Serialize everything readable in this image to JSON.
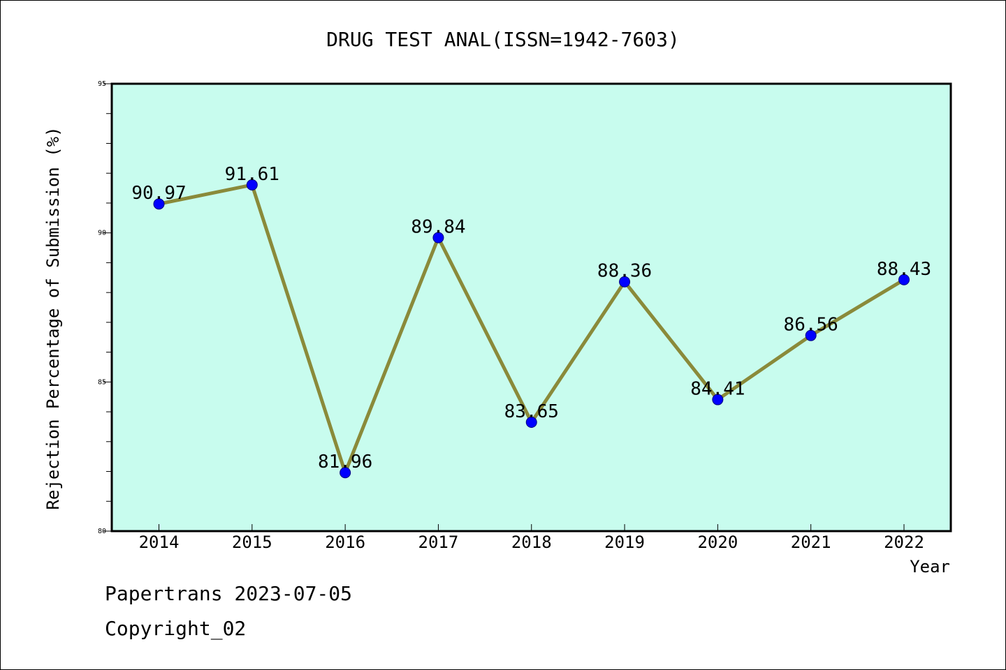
{
  "chart_data": {
    "type": "line",
    "title": "DRUG TEST ANAL(ISSN=1942-7603)",
    "xlabel": "Year",
    "ylabel": "Rejection Percentage of Submission (%)",
    "categories": [
      "2014",
      "2015",
      "2016",
      "2017",
      "2018",
      "2019",
      "2020",
      "2021",
      "2022"
    ],
    "values": [
      90.97,
      91.61,
      81.96,
      89.84,
      83.65,
      88.36,
      84.41,
      86.56,
      88.43
    ],
    "data_labels": [
      "90.97",
      "91.61",
      "81.96",
      "89.84",
      "83.65",
      "88.36",
      "84.41",
      "86.56",
      "88.43"
    ],
    "ylim": [
      80,
      95
    ],
    "yticks_major": [
      80,
      85,
      90,
      95
    ],
    "yticks_major_labels": [
      "80",
      "85",
      "90",
      "95"
    ],
    "yticks_minor_step": 1,
    "grid": false,
    "legend": "none",
    "colors": {
      "plot_background": "#c8fcee",
      "line": "#8a8a3a",
      "marker_fill": "#0000ff",
      "marker_edge": "#000080",
      "text": "#000000"
    }
  },
  "footer": {
    "line1": "Papertrans 2023-07-05",
    "line2": "Copyright_02"
  }
}
